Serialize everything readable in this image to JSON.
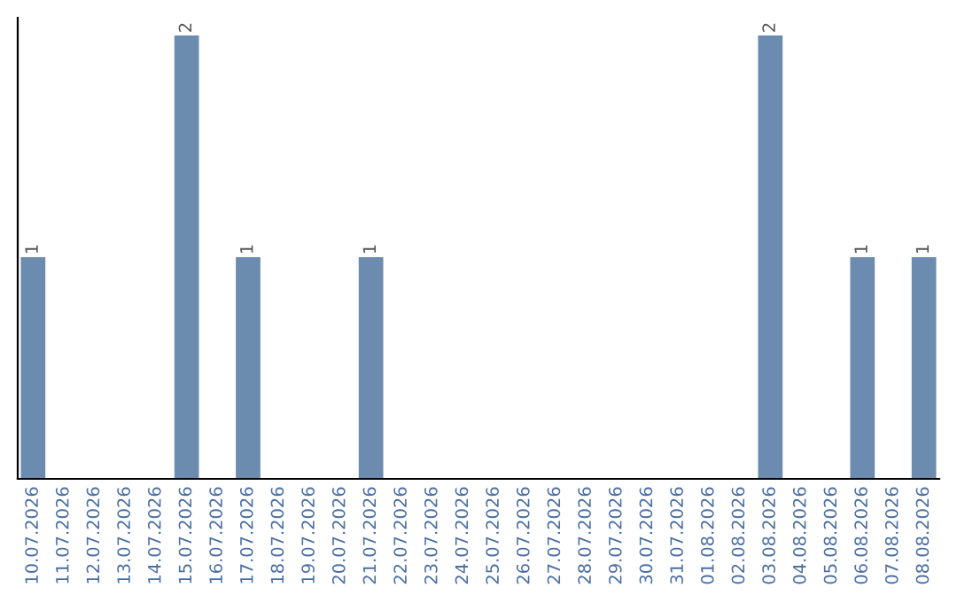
{
  "chart_data": {
    "type": "bar",
    "categories": [
      "10.07.2026",
      "11.07.2026",
      "12.07.2026",
      "13.07.2026",
      "14.07.2026",
      "15.07.2026",
      "16.07.2026",
      "17.07.2026",
      "18.07.2026",
      "19.07.2026",
      "20.07.2026",
      "21.07.2026",
      "22.07.2026",
      "23.07.2026",
      "24.07.2026",
      "25.07.2026",
      "26.07.2026",
      "27.07.2026",
      "28.07.2026",
      "29.07.2026",
      "30.07.2026",
      "31.07.2026",
      "01.08.2026",
      "02.08.2026",
      "03.08.2026",
      "04.08.2026",
      "05.08.2026",
      "06.08.2026",
      "07.08.2026",
      "08.08.2026"
    ],
    "values": [
      1,
      0,
      0,
      0,
      0,
      2,
      0,
      1,
      0,
      0,
      0,
      1,
      0,
      0,
      0,
      0,
      0,
      0,
      0,
      0,
      0,
      0,
      0,
      0,
      2,
      0,
      0,
      1,
      0,
      1
    ],
    "value_labels": [
      "1",
      null,
      null,
      null,
      null,
      "2",
      null,
      "1",
      null,
      null,
      null,
      "1",
      null,
      null,
      null,
      null,
      null,
      null,
      null,
      null,
      null,
      null,
      null,
      null,
      "2",
      null,
      null,
      "1",
      null,
      "1"
    ],
    "color": "#6b8cae",
    "grid": false,
    "legend": false,
    "tick_labels": "x"
  }
}
